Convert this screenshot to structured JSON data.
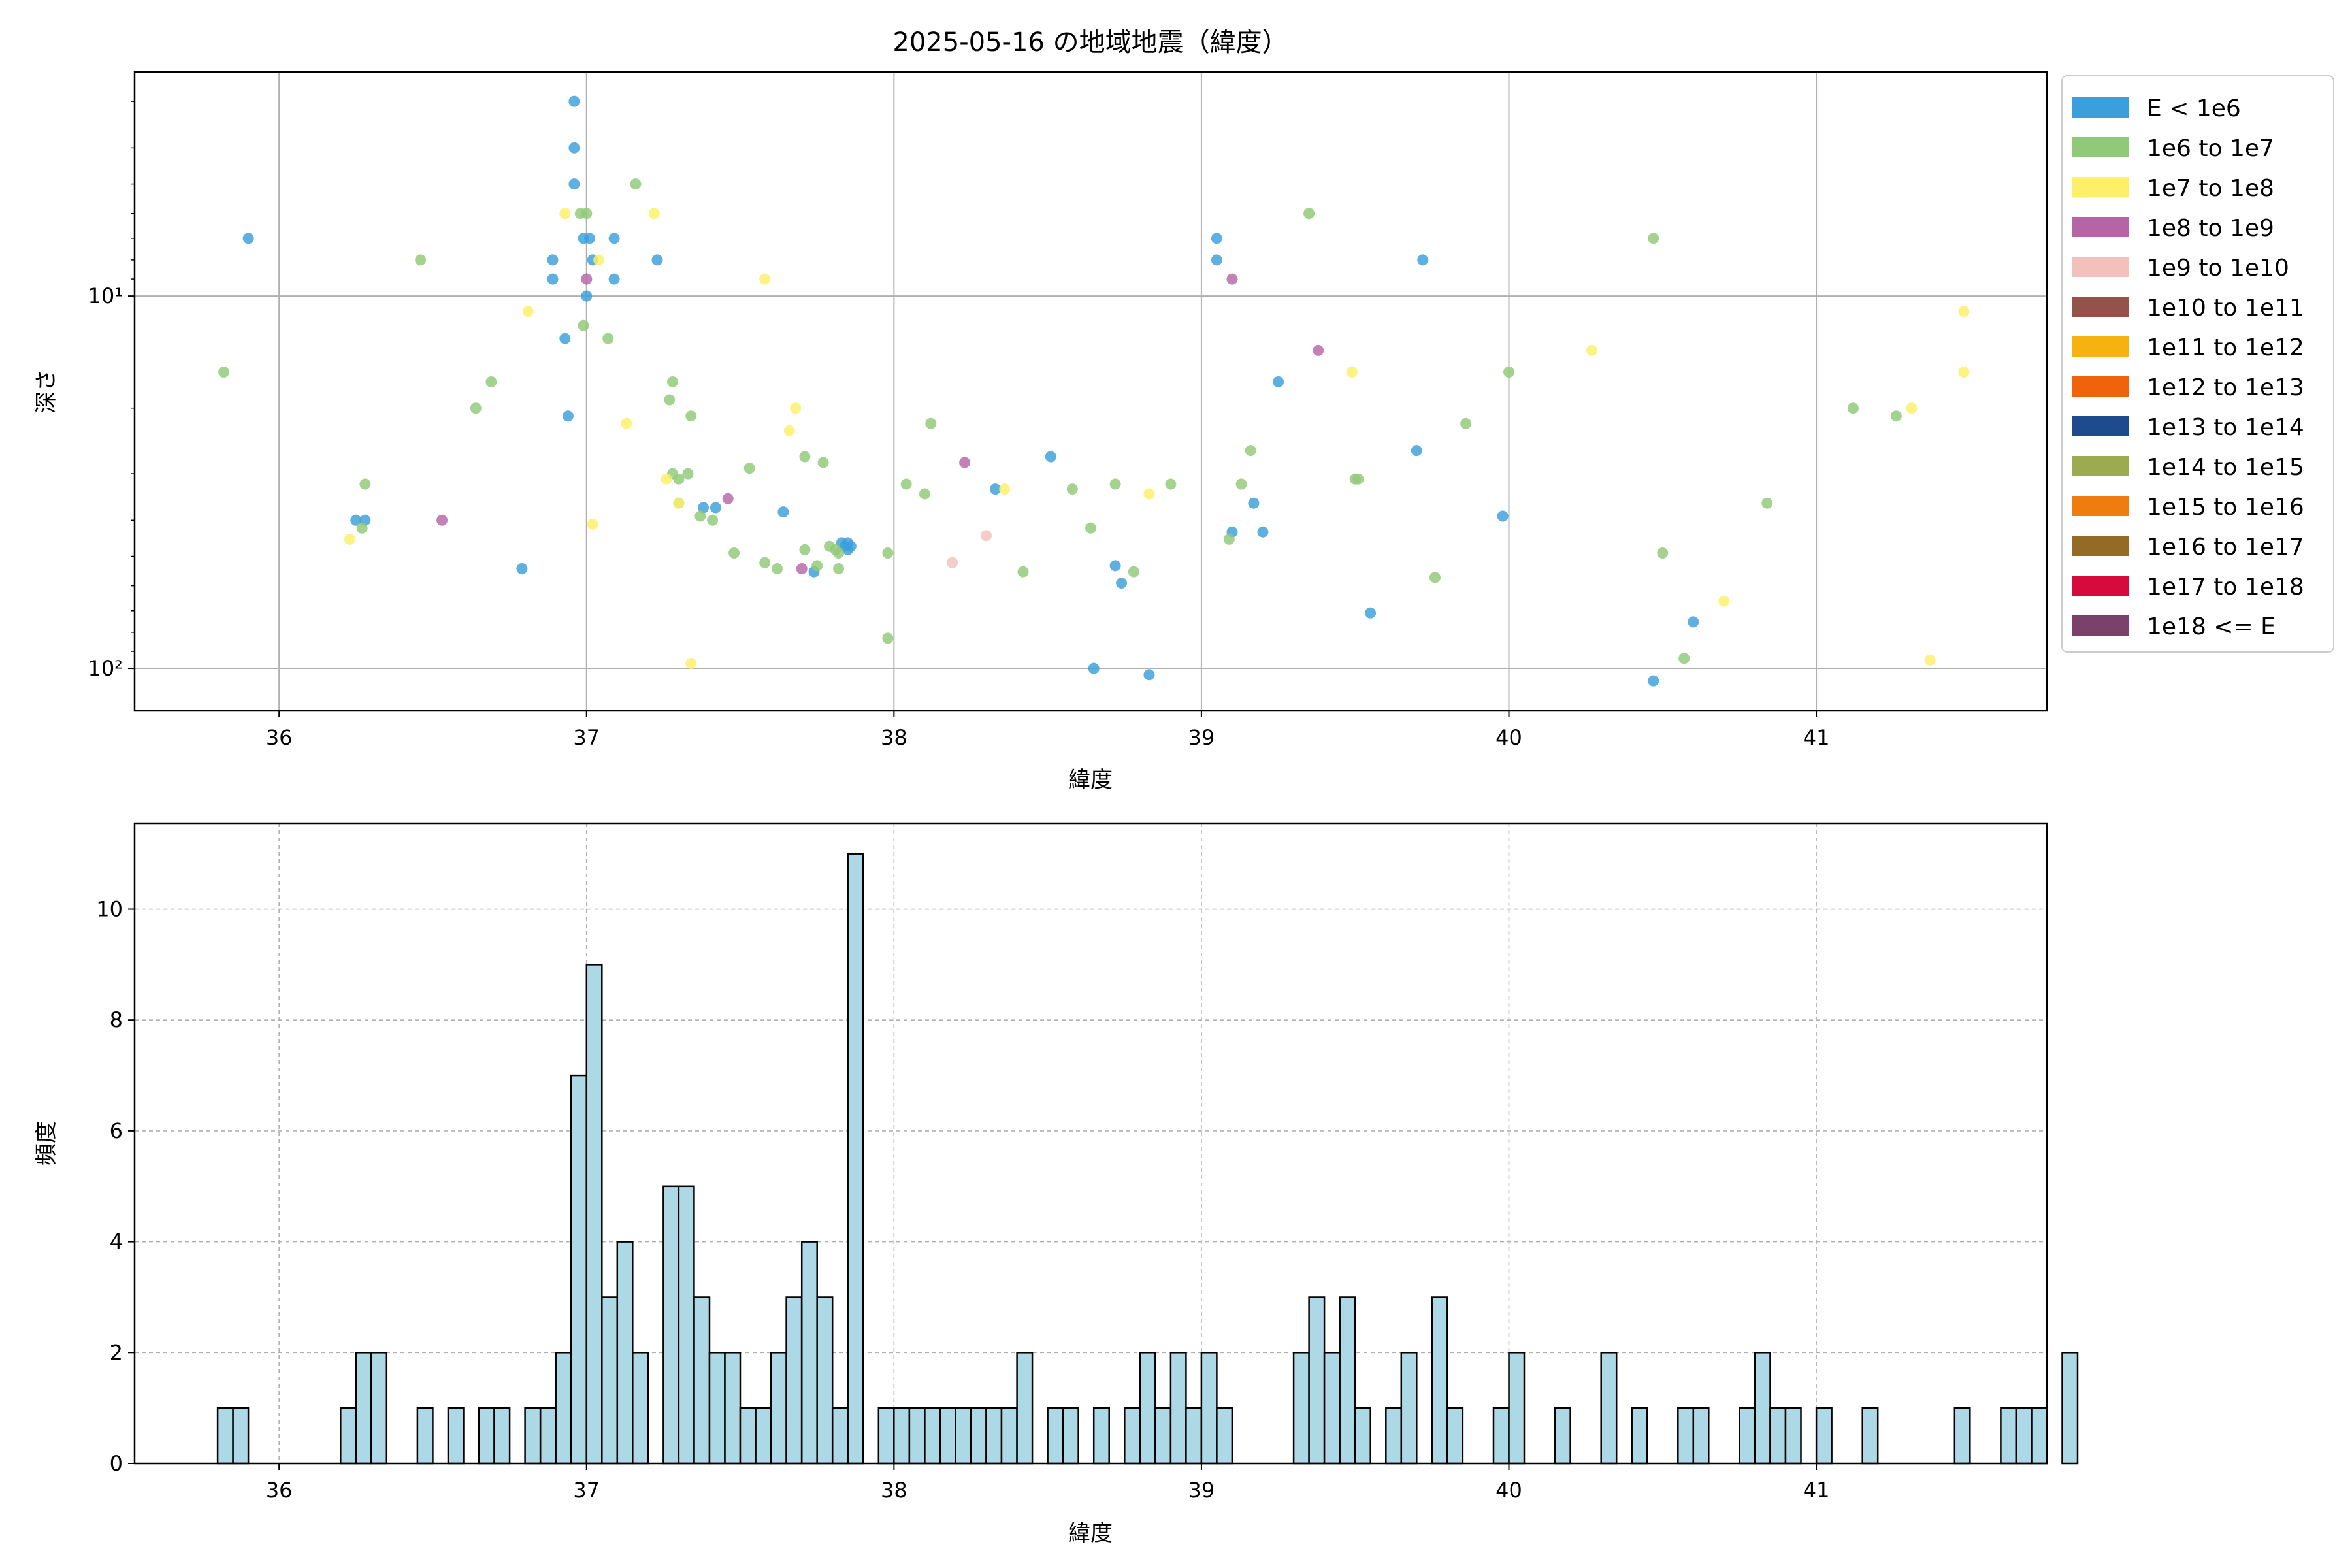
{
  "chart_data": [
    {
      "type": "scatter",
      "title": "2025-05-16 の地域地震（緯度）",
      "xlabel": "緯度",
      "ylabel": "深さ",
      "xlim": [
        35.53,
        41.75
      ],
      "ylim": [
        130,
        2.5
      ],
      "yscale": "log",
      "y_inverted": true,
      "grid": true,
      "legend_position": "right-outside-top",
      "x_ticks": [
        36,
        37,
        38,
        39,
        40,
        41
      ],
      "x_tick_labels": [
        "36",
        "37",
        "38",
        "39",
        "40",
        "41"
      ],
      "y_ticks": [
        10,
        100
      ],
      "y_tick_labels": [
        "10¹",
        "10²"
      ],
      "legend": [
        {
          "label": "E < 1e6",
          "color": "#3b9fdb"
        },
        {
          "label": "1e6 to 1e7",
          "color": "#90c978"
        },
        {
          "label": "1e7 to 1e8",
          "color": "#fdef67"
        },
        {
          "label": "1e8 to 1e9",
          "color": "#b565a7"
        },
        {
          "label": "1e9 to 1e10",
          "color": "#f3c1bc"
        },
        {
          "label": "1e10 to 1e11",
          "color": "#95524a"
        },
        {
          "label": "1e11 to 1e12",
          "color": "#f6b30f"
        },
        {
          "label": "1e12 to 1e13",
          "color": "#ef640a"
        },
        {
          "label": "1e13 to 1e14",
          "color": "#1e4a8e"
        },
        {
          "label": "1e14 to 1e15",
          "color": "#9bab4e"
        },
        {
          "label": "1e15 to 1e16",
          "color": "#ef7c0e"
        },
        {
          "label": "1e16 to 1e17",
          "color": "#936b25"
        },
        {
          "label": "1e17 to 1e18",
          "color": "#d60a3d"
        },
        {
          "label": "1e18 <= E",
          "color": "#7a416b"
        }
      ],
      "points": [
        [
          35.9,
          7,
          0
        ],
        [
          36.25,
          40,
          0
        ],
        [
          36.28,
          40,
          0
        ],
        [
          36.79,
          54,
          0
        ],
        [
          36.89,
          8,
          0
        ],
        [
          36.89,
          9,
          0
        ],
        [
          36.93,
          13,
          0
        ],
        [
          36.94,
          21,
          0
        ],
        [
          36.96,
          3,
          0
        ],
        [
          36.96,
          4,
          0
        ],
        [
          36.96,
          5,
          0
        ],
        [
          36.99,
          7,
          0
        ],
        [
          37.0,
          10,
          0
        ],
        [
          37.01,
          7,
          0
        ],
        [
          37.02,
          8,
          0
        ],
        [
          37.09,
          7,
          0
        ],
        [
          37.09,
          9,
          0
        ],
        [
          37.23,
          8,
          0
        ],
        [
          37.38,
          37,
          0
        ],
        [
          37.42,
          37,
          0
        ],
        [
          37.64,
          38,
          0
        ],
        [
          37.74,
          55,
          0
        ],
        [
          37.83,
          46,
          0
        ],
        [
          37.84,
          47,
          0
        ],
        [
          37.85,
          48,
          0
        ],
        [
          37.85,
          46,
          0
        ],
        [
          37.86,
          47,
          0
        ],
        [
          38.33,
          33,
          0
        ],
        [
          38.51,
          27,
          0
        ],
        [
          38.65,
          100,
          0
        ],
        [
          38.72,
          53,
          0
        ],
        [
          38.74,
          59,
          0
        ],
        [
          38.83,
          104,
          0
        ],
        [
          39.05,
          7,
          0
        ],
        [
          39.05,
          8,
          0
        ],
        [
          39.1,
          43,
          0
        ],
        [
          39.17,
          36,
          0
        ],
        [
          39.2,
          43,
          0
        ],
        [
          39.25,
          17,
          0
        ],
        [
          39.55,
          71,
          0
        ],
        [
          39.7,
          26,
          0
        ],
        [
          39.72,
          8,
          0
        ],
        [
          39.98,
          39,
          0
        ],
        [
          40.47,
          108,
          0
        ],
        [
          40.6,
          75,
          0
        ],
        [
          35.82,
          16,
          1
        ],
        [
          36.27,
          42,
          1
        ],
        [
          36.28,
          32,
          1
        ],
        [
          36.46,
          8,
          1
        ],
        [
          36.64,
          20,
          1
        ],
        [
          36.69,
          17,
          1
        ],
        [
          36.98,
          6,
          1
        ],
        [
          36.99,
          12,
          1
        ],
        [
          37.0,
          6,
          1
        ],
        [
          37.07,
          13,
          1
        ],
        [
          37.16,
          5,
          1
        ],
        [
          37.27,
          19,
          1
        ],
        [
          37.28,
          17,
          1
        ],
        [
          37.28,
          30,
          1
        ],
        [
          37.3,
          31,
          1
        ],
        [
          37.3,
          36,
          1
        ],
        [
          37.33,
          30,
          1
        ],
        [
          37.34,
          21,
          1
        ],
        [
          37.37,
          39,
          1
        ],
        [
          37.41,
          40,
          1
        ],
        [
          37.48,
          49,
          1
        ],
        [
          37.53,
          29,
          1
        ],
        [
          37.58,
          52,
          1
        ],
        [
          37.62,
          54,
          1
        ],
        [
          37.71,
          48,
          1
        ],
        [
          37.71,
          27,
          1
        ],
        [
          37.75,
          53,
          1
        ],
        [
          37.77,
          28,
          1
        ],
        [
          37.79,
          47,
          1
        ],
        [
          37.81,
          48,
          1
        ],
        [
          37.82,
          54,
          1
        ],
        [
          37.82,
          49,
          1
        ],
        [
          37.98,
          49,
          1
        ],
        [
          37.98,
          83,
          1
        ],
        [
          38.04,
          32,
          1
        ],
        [
          38.1,
          34,
          1
        ],
        [
          38.12,
          22,
          1
        ],
        [
          38.42,
          55,
          1
        ],
        [
          38.58,
          33,
          1
        ],
        [
          38.64,
          42,
          1
        ],
        [
          38.72,
          32,
          1
        ],
        [
          38.78,
          55,
          1
        ],
        [
          38.9,
          32,
          1
        ],
        [
          39.09,
          45,
          1
        ],
        [
          39.13,
          32,
          1
        ],
        [
          39.16,
          26,
          1
        ],
        [
          39.35,
          6,
          1
        ],
        [
          39.5,
          31,
          1
        ],
        [
          39.51,
          31,
          1
        ],
        [
          39.76,
          57,
          1
        ],
        [
          39.86,
          22,
          1
        ],
        [
          40.0,
          16,
          1
        ],
        [
          40.47,
          7,
          1
        ],
        [
          40.5,
          49,
          1
        ],
        [
          40.57,
          94,
          1
        ],
        [
          40.84,
          36,
          1
        ],
        [
          41.12,
          20,
          1
        ],
        [
          41.26,
          21,
          1
        ],
        [
          36.23,
          45,
          2
        ],
        [
          36.81,
          11,
          2
        ],
        [
          36.93,
          6,
          2
        ],
        [
          37.02,
          41,
          2
        ],
        [
          37.04,
          8,
          2
        ],
        [
          37.13,
          22,
          2
        ],
        [
          37.22,
          6,
          2
        ],
        [
          37.26,
          31,
          2
        ],
        [
          37.3,
          36,
          2
        ],
        [
          37.34,
          97,
          2
        ],
        [
          37.58,
          9,
          2
        ],
        [
          37.66,
          23,
          2
        ],
        [
          37.68,
          20,
          2
        ],
        [
          38.36,
          33,
          2
        ],
        [
          38.83,
          34,
          2
        ],
        [
          39.49,
          16,
          2
        ],
        [
          40.27,
          14,
          2
        ],
        [
          40.7,
          66,
          2
        ],
        [
          41.31,
          20,
          2
        ],
        [
          41.37,
          95,
          2
        ],
        [
          41.48,
          11,
          2
        ],
        [
          41.48,
          16,
          2
        ],
        [
          36.53,
          40,
          3
        ],
        [
          37.0,
          9,
          3
        ],
        [
          37.46,
          35,
          3
        ],
        [
          37.7,
          54,
          3
        ],
        [
          38.23,
          28,
          3
        ],
        [
          39.1,
          9,
          3
        ],
        [
          39.38,
          14,
          3
        ],
        [
          38.19,
          52,
          4
        ],
        [
          38.3,
          44,
          4
        ]
      ]
    },
    {
      "type": "bar",
      "title": "",
      "xlabel": "緯度",
      "ylabel": "頻度",
      "xlim": [
        35.53,
        41.75
      ],
      "ylim": [
        0,
        11.55
      ],
      "grid": true,
      "bin_start": 35.8,
      "bin_width": 0.05,
      "bar_color": "#add8e6",
      "edge_color": "#000000",
      "x_ticks": [
        36,
        37,
        38,
        39,
        40,
        41
      ],
      "x_tick_labels": [
        "36",
        "37",
        "38",
        "39",
        "40",
        "41"
      ],
      "y_ticks": [
        0,
        2,
        4,
        6,
        8,
        10
      ],
      "y_tick_labels": [
        "0",
        "2",
        "4",
        "6",
        "8",
        "10"
      ],
      "values": [
        1,
        1,
        0,
        0,
        0,
        0,
        0,
        0,
        1,
        2,
        2,
        0,
        0,
        1,
        0,
        1,
        0,
        1,
        1,
        0,
        1,
        1,
        2,
        7,
        9,
        3,
        4,
        2,
        0,
        5,
        5,
        3,
        2,
        2,
        1,
        1,
        2,
        3,
        4,
        3,
        1,
        11,
        0,
        1,
        1,
        1,
        1,
        1,
        1,
        1,
        1,
        1,
        2,
        0,
        1,
        1,
        0,
        1,
        0,
        1,
        2,
        1,
        2,
        1,
        2,
        1,
        0,
        0,
        0,
        0,
        2,
        3,
        2,
        3,
        1,
        0,
        1,
        2,
        0,
        3,
        1,
        0,
        0,
        1,
        2,
        0,
        0,
        1,
        0,
        0,
        2,
        0,
        1,
        0,
        0,
        1,
        1,
        0,
        0,
        1,
        2,
        1,
        1,
        0,
        1,
        0,
        0,
        1,
        0,
        0,
        0,
        0,
        0,
        1,
        0,
        0,
        1,
        1,
        1,
        0,
        2
      ]
    }
  ]
}
